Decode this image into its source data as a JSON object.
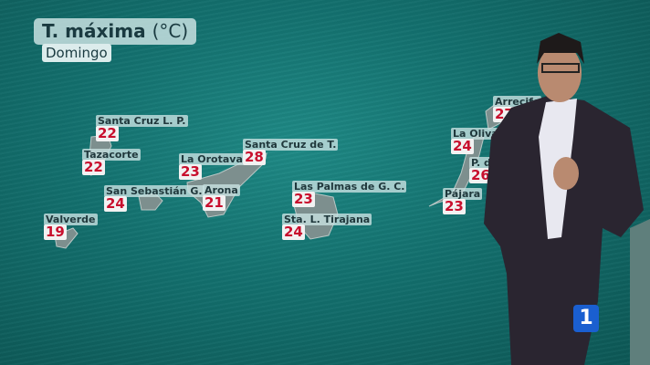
{
  "header": {
    "title": "T. máxima",
    "unit": "(°C)",
    "day": "Domingo"
  },
  "stations": [
    {
      "name": "Santa Cruz  L. P.",
      "temp": "22"
    },
    {
      "name": "Tazacorte",
      "temp": "22"
    },
    {
      "name": "La Orotava",
      "temp": "23"
    },
    {
      "name": "Santa Cruz de T.",
      "temp": "28"
    },
    {
      "name": "San Sebastián G.",
      "temp": "24"
    },
    {
      "name": "Arona",
      "temp": "21"
    },
    {
      "name": "Las Palmas de G. C.",
      "temp": "23"
    },
    {
      "name": "Sta. L. Tirajana",
      "temp": "24"
    },
    {
      "name": "Valverde",
      "temp": "19"
    },
    {
      "name": "Arrecife",
      "temp": "27"
    },
    {
      "name": "La Oliva",
      "temp": "24"
    },
    {
      "name": "P. de",
      "temp": "26"
    },
    {
      "name": "Pájara",
      "temp": "23"
    }
  ],
  "logo": {
    "text": "1",
    "color": "#1a5fd0"
  },
  "colors": {
    "sea": "#13706e",
    "temp": "#c8102e",
    "label_bg": "#c8e1e1"
  }
}
